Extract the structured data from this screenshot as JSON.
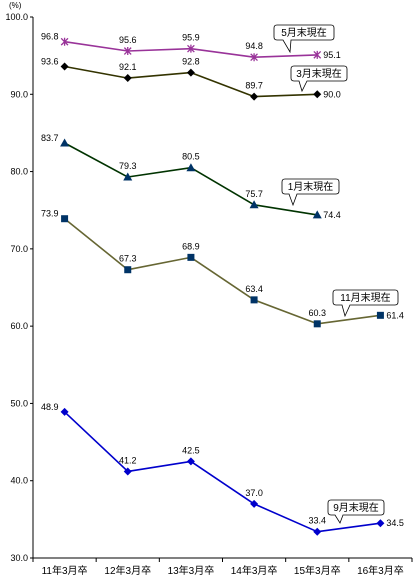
{
  "chart_data": {
    "type": "line",
    "ylabel": "(%)",
    "ylim": [
      30,
      100
    ],
    "ytick_labels": [
      "100.0",
      "90.0",
      "80.0",
      "70.0",
      "60.0",
      "50.0",
      "40.0",
      "30.0"
    ],
    "categories": [
      "11年3月卒",
      "12年3月卒",
      "13年3月卒",
      "14年3月卒",
      "15年3月卒",
      "16年3月卒"
    ],
    "grid": false,
    "legend_placement": "inline",
    "series": [
      {
        "name": "5月末現在",
        "values": [
          96.8,
          95.6,
          95.9,
          94.8,
          95.1,
          null
        ],
        "labels": [
          "96.8",
          "95.6",
          "95.9",
          "94.8",
          "95.1",
          null
        ],
        "color": "#993399",
        "marker": "star",
        "marker_color": "#993399"
      },
      {
        "name": "3月末現在",
        "values": [
          93.6,
          92.1,
          92.8,
          89.7,
          90.0,
          null
        ],
        "labels": [
          "93.6",
          "92.1",
          "92.8",
          "89.7",
          "90.0",
          null
        ],
        "color": "#333300",
        "marker": "diamond",
        "marker_color": "#000000"
      },
      {
        "name": "1月末現在",
        "values": [
          83.7,
          79.3,
          80.5,
          75.7,
          74.4,
          null
        ],
        "labels": [
          "83.7",
          "79.3",
          "80.5",
          "75.7",
          "74.4",
          null
        ],
        "color": "#003300",
        "marker": "triangle",
        "marker_color": "#003366"
      },
      {
        "name": "11月末現在",
        "values": [
          73.9,
          67.3,
          68.9,
          63.4,
          60.3,
          61.4
        ],
        "labels": [
          "73.9",
          "67.3",
          "68.9",
          "63.4",
          "60.3",
          "61.4"
        ],
        "color": "#666633",
        "marker": "square",
        "marker_color": "#003366"
      },
      {
        "name": "9月末現在",
        "values": [
          48.9,
          41.2,
          42.5,
          37.0,
          33.4,
          34.5
        ],
        "labels": [
          "48.9",
          "41.2",
          "42.5",
          "37.0",
          "33.4",
          "34.5"
        ],
        "color": "#0000CC",
        "marker": "diamond",
        "marker_color": "#0000CC"
      }
    ]
  }
}
